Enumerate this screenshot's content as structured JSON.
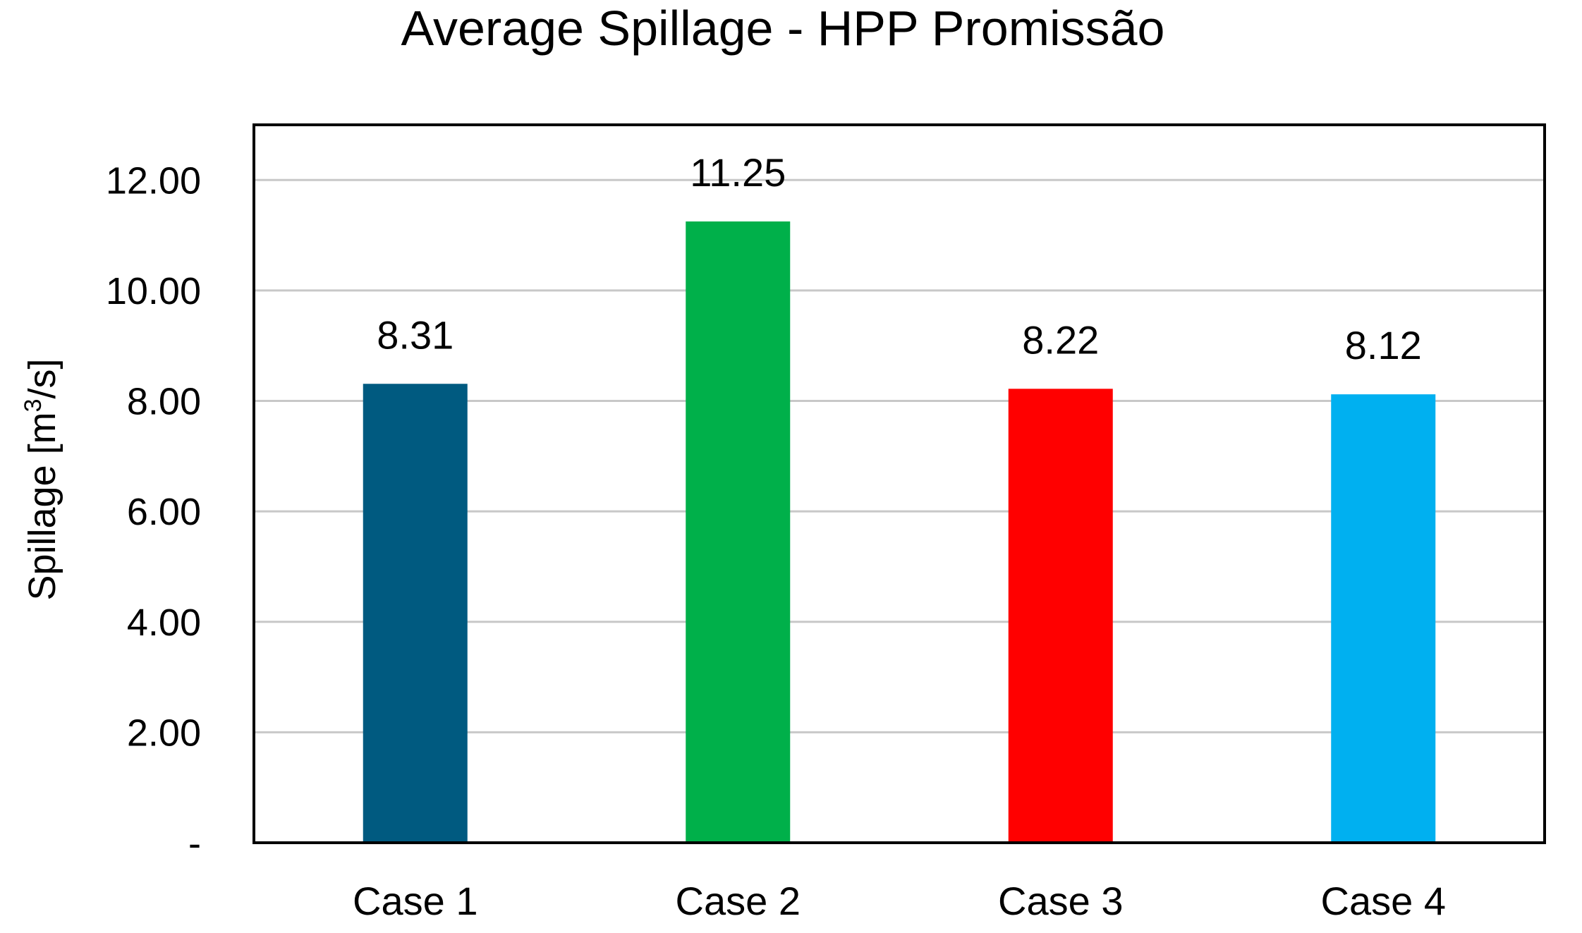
{
  "chart_data": {
    "type": "bar",
    "title": "Average Spillage - HPP Promissão",
    "ylabel": {
      "before": "Spillage [m",
      "sup": "3",
      "after": "/s]"
    },
    "xlabel": "",
    "categories": [
      "Case 1",
      "Case 2",
      "Case 3",
      "Case 4"
    ],
    "values": [
      8.31,
      11.25,
      8.22,
      8.12
    ],
    "value_labels": [
      "8.31",
      "11.25",
      "8.22",
      "8.12"
    ],
    "colors": [
      "#005A80",
      "#00B04A",
      "#FF0000",
      "#00B0F0"
    ],
    "ylim": [
      0,
      13
    ],
    "yticks": [
      0,
      2,
      4,
      6,
      8,
      10,
      12
    ],
    "ytick_labels": [
      "-",
      "2.00",
      "4.00",
      "6.00",
      "8.00",
      "10.00",
      "12.00"
    ],
    "grid": true,
    "legend": "none"
  }
}
